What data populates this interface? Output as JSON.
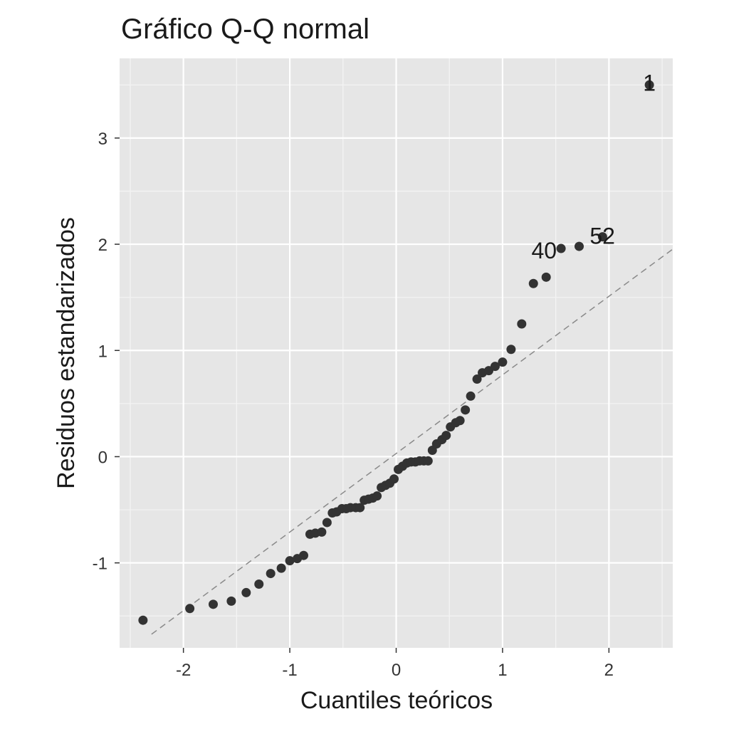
{
  "chart_data": {
    "type": "scatter",
    "title": "Gráfico Q-Q normal",
    "xlabel": "Cuantiles teóricos",
    "ylabel": "Residuos estandarizados",
    "xlim": [
      -2.6,
      2.6
    ],
    "ylim": [
      -1.8,
      3.75
    ],
    "xticks": [
      -2,
      -1,
      0,
      1,
      2
    ],
    "yticks": [
      -1,
      0,
      1,
      2,
      3
    ],
    "xtick_labels": [
      "-2",
      "-1",
      "0",
      "1",
      "2"
    ],
    "ytick_labels": [
      "-1",
      "0",
      "1",
      "2",
      "3"
    ],
    "grid": true,
    "reference_line": {
      "intercept": 0.03,
      "slope": 0.74,
      "style": "dashed"
    },
    "points": [
      {
        "x": -2.38,
        "y": -1.54
      },
      {
        "x": -1.94,
        "y": -1.43
      },
      {
        "x": -1.72,
        "y": -1.39
      },
      {
        "x": -1.55,
        "y": -1.36
      },
      {
        "x": -1.41,
        "y": -1.28
      },
      {
        "x": -1.29,
        "y": -1.2
      },
      {
        "x": -1.18,
        "y": -1.1
      },
      {
        "x": -1.08,
        "y": -1.05
      },
      {
        "x": -1.0,
        "y": -0.98
      },
      {
        "x": -0.93,
        "y": -0.96
      },
      {
        "x": -0.87,
        "y": -0.93
      },
      {
        "x": -0.81,
        "y": -0.73
      },
      {
        "x": -0.76,
        "y": -0.72
      },
      {
        "x": -0.7,
        "y": -0.71
      },
      {
        "x": -0.65,
        "y": -0.62
      },
      {
        "x": -0.6,
        "y": -0.53
      },
      {
        "x": -0.56,
        "y": -0.52
      },
      {
        "x": -0.51,
        "y": -0.49
      },
      {
        "x": -0.47,
        "y": -0.49
      },
      {
        "x": -0.43,
        "y": -0.48
      },
      {
        "x": -0.38,
        "y": -0.48
      },
      {
        "x": -0.34,
        "y": -0.48
      },
      {
        "x": -0.3,
        "y": -0.41
      },
      {
        "x": -0.26,
        "y": -0.4
      },
      {
        "x": -0.22,
        "y": -0.39
      },
      {
        "x": -0.18,
        "y": -0.37
      },
      {
        "x": -0.14,
        "y": -0.29
      },
      {
        "x": -0.1,
        "y": -0.27
      },
      {
        "x": -0.06,
        "y": -0.25
      },
      {
        "x": -0.02,
        "y": -0.21
      },
      {
        "x": 0.02,
        "y": -0.12
      },
      {
        "x": 0.06,
        "y": -0.09
      },
      {
        "x": 0.1,
        "y": -0.06
      },
      {
        "x": 0.14,
        "y": -0.05
      },
      {
        "x": 0.18,
        "y": -0.05
      },
      {
        "x": 0.22,
        "y": -0.04
      },
      {
        "x": 0.26,
        "y": -0.04
      },
      {
        "x": 0.3,
        "y": -0.04
      },
      {
        "x": 0.34,
        "y": 0.06
      },
      {
        "x": 0.38,
        "y": 0.12
      },
      {
        "x": 0.43,
        "y": 0.16
      },
      {
        "x": 0.47,
        "y": 0.2
      },
      {
        "x": 0.51,
        "y": 0.28
      },
      {
        "x": 0.56,
        "y": 0.32
      },
      {
        "x": 0.6,
        "y": 0.34
      },
      {
        "x": 0.65,
        "y": 0.44
      },
      {
        "x": 0.7,
        "y": 0.57
      },
      {
        "x": 0.76,
        "y": 0.73
      },
      {
        "x": 0.81,
        "y": 0.79
      },
      {
        "x": 0.87,
        "y": 0.81
      },
      {
        "x": 0.93,
        "y": 0.85
      },
      {
        "x": 1.0,
        "y": 0.89
      },
      {
        "x": 1.08,
        "y": 1.01
      },
      {
        "x": 1.18,
        "y": 1.25
      },
      {
        "x": 1.29,
        "y": 1.63
      },
      {
        "x": 1.41,
        "y": 1.69
      },
      {
        "x": 1.55,
        "y": 1.96,
        "label": "40"
      },
      {
        "x": 1.72,
        "y": 1.98
      },
      {
        "x": 1.94,
        "y": 2.07,
        "label": "52"
      },
      {
        "x": 2.38,
        "y": 3.5,
        "label": "1"
      }
    ]
  }
}
